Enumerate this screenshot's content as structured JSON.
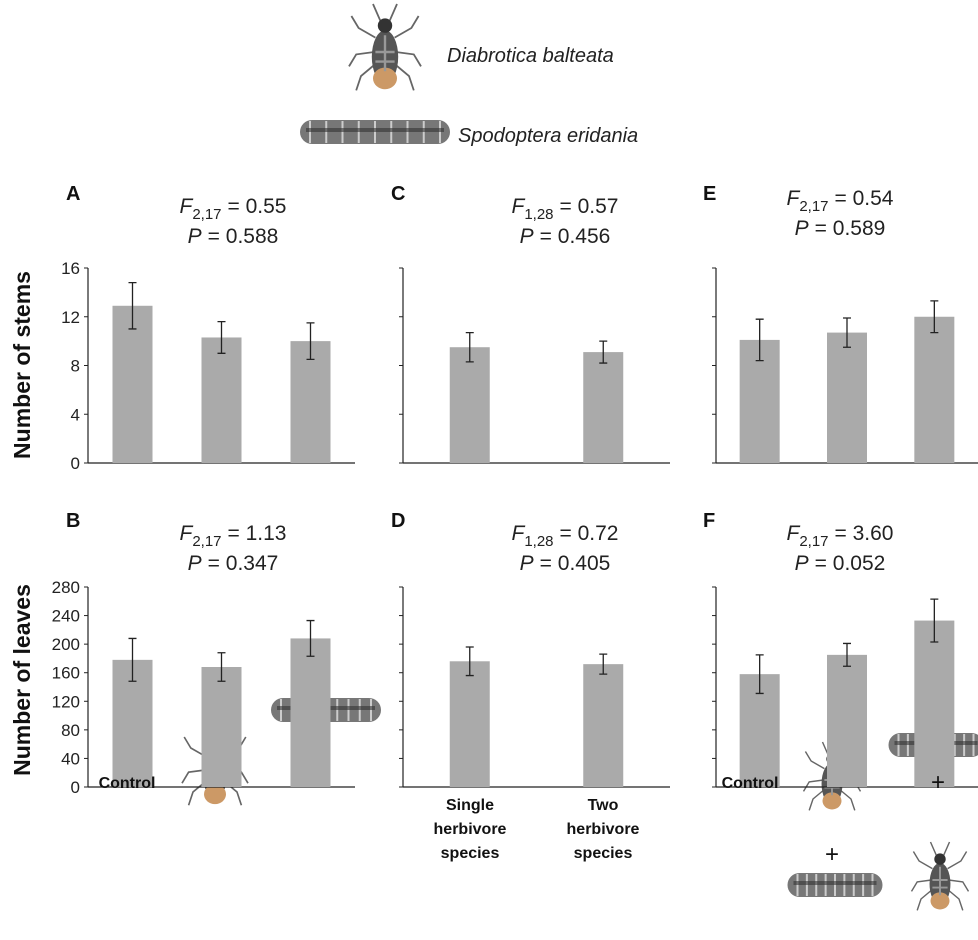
{
  "species": [
    "Diabrotica balteata",
    "Spodoptera eridania"
  ],
  "chart_data": [
    {
      "type": "bar",
      "panel": "A",
      "f_label": "F",
      "f_df": "2,17",
      "f_value": "= 0.55",
      "p_label": "P",
      "p_value": "= 0.588",
      "ylabel": "Number of stems",
      "categories": [
        null,
        null,
        null
      ],
      "values": [
        12.9,
        10.3,
        10.0
      ],
      "errors": [
        1.9,
        1.3,
        1.5
      ],
      "color": "#aaaaaa",
      "ylim": [
        0,
        16
      ],
      "yticks": [
        0,
        4,
        8,
        12,
        16
      ],
      "ytick_labels": true
    },
    {
      "type": "bar",
      "panel": "B",
      "f_label": "F",
      "f_df": "2,17",
      "f_value": "= 1.13",
      "p_label": "P",
      "p_value": "= 0.347",
      "ylabel": "Number of leaves",
      "categories": [
        "Control",
        null,
        null
      ],
      "values": [
        178,
        168,
        208
      ],
      "errors": [
        30,
        20,
        25
      ],
      "color": "#aaaaaa",
      "ylim": [
        0,
        280
      ],
      "yticks": [
        0,
        40,
        80,
        120,
        160,
        200,
        240,
        280
      ],
      "ytick_labels": true
    },
    {
      "type": "bar",
      "panel": "C",
      "f_label": "F",
      "f_df": "1,28",
      "f_value": "= 0.57",
      "p_label": "P",
      "p_value": "= 0.456",
      "categories": [
        null,
        null
      ],
      "values": [
        9.5,
        9.1
      ],
      "errors": [
        1.2,
        0.9
      ],
      "color": "#aaaaaa",
      "ylim": [
        0,
        16
      ],
      "yticks": [
        0,
        4,
        8,
        12,
        16
      ],
      "ytick_labels": false
    },
    {
      "type": "bar",
      "panel": "D",
      "f_label": "F",
      "f_df": "1,28",
      "f_value": "= 0.72",
      "p_label": "P",
      "p_value": "= 0.405",
      "categories": [
        "Single herbivore species",
        "Two herbivore species"
      ],
      "values": [
        176,
        172
      ],
      "errors": [
        20,
        14
      ],
      "color": "#aaaaaa",
      "ylim": [
        0,
        280
      ],
      "yticks": [
        0,
        40,
        80,
        120,
        160,
        200,
        240,
        280
      ],
      "ytick_labels": false
    },
    {
      "type": "bar",
      "panel": "E",
      "f_label": "F",
      "f_df": "2,17",
      "f_value": "= 0.54",
      "p_label": "P",
      "p_value": "= 0.589",
      "categories": [
        null,
        null,
        null
      ],
      "values": [
        10.1,
        10.7,
        12.0
      ],
      "errors": [
        1.7,
        1.2,
        1.3
      ],
      "color": "#aaaaaa",
      "ylim": [
        0,
        16
      ],
      "yticks": [
        0,
        4,
        8,
        12,
        16
      ],
      "ytick_labels": false
    },
    {
      "type": "bar",
      "panel": "F",
      "f_label": "F",
      "f_df": "2,17",
      "f_value": "= 3.60",
      "p_label": "P",
      "p_value": "= 0.052",
      "categories": [
        "Control",
        null,
        null
      ],
      "values": [
        158,
        185,
        233
      ],
      "errors": [
        27,
        16,
        30
      ],
      "annotations": [
        "+",
        "+"
      ],
      "color": "#aaaaaa",
      "ylim": [
        0,
        280
      ],
      "yticks": [
        0,
        40,
        80,
        120,
        160,
        200,
        240,
        280
      ],
      "ytick_labels": false
    }
  ]
}
